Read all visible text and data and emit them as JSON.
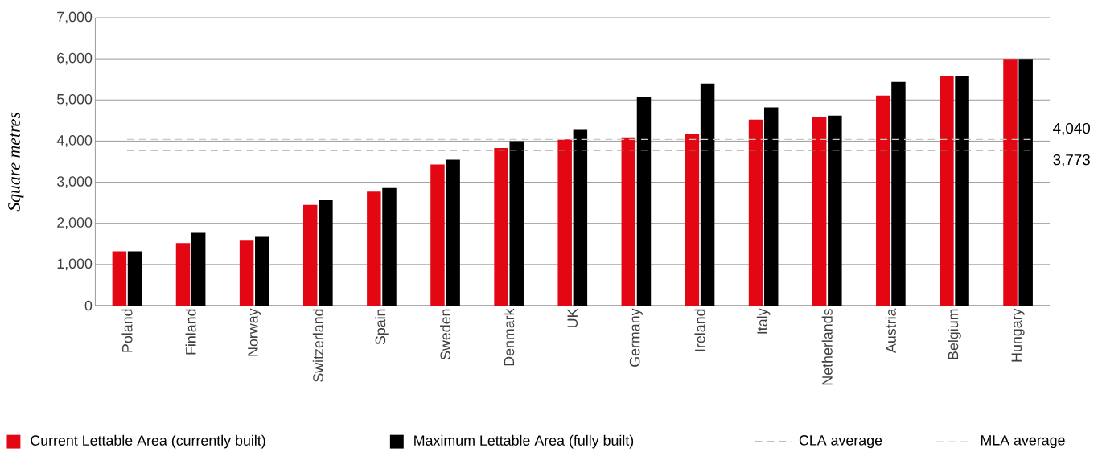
{
  "chart_data": {
    "type": "bar",
    "ylabel": "*Square metres*",
    "categories": [
      "Poland",
      "Finland",
      "Norway",
      "Switzerland",
      "Spain",
      "Sweden",
      "Denmark",
      "UK",
      "Germany",
      "Ireland",
      "Italy",
      "Netherlands",
      "Austria",
      "Belgium",
      "Hungary"
    ],
    "series": [
      {
        "name": "Current Lettable Area (currently built)",
        "color": "#e30613",
        "values": [
          1320,
          1520,
          1580,
          2450,
          2770,
          3430,
          3830,
          4040,
          4090,
          4170,
          4520,
          4590,
          5110,
          5590,
          6000
        ]
      },
      {
        "name": "Maximum Lettable Area (fully built)",
        "color": "#000000",
        "values": [
          1320,
          1770,
          1670,
          2560,
          2860,
          3550,
          4000,
          4270,
          5070,
          5400,
          4820,
          4620,
          5440,
          5590,
          6000
        ]
      }
    ],
    "ylim": [
      0,
      7000
    ],
    "yticks": [
      {
        "value": 0,
        "label": "0"
      },
      {
        "value": 1000,
        "label": "1,000"
      },
      {
        "value": 2000,
        "label": "2,000"
      },
      {
        "value": 3000,
        "label": "3,000"
      },
      {
        "value": 4000,
        "label": "4,000"
      },
      {
        "value": 5000,
        "label": "5,000"
      },
      {
        "value": 6000,
        "label": "6,000"
      },
      {
        "value": 7000,
        "label": "7,000"
      }
    ],
    "grid": "y",
    "legend": "bottom",
    "ref_lines": [
      {
        "axis": "y",
        "value": 3773,
        "label": "3,773",
        "color": "#808080",
        "line_style": "dashed"
      },
      {
        "axis": "y",
        "value": 4040,
        "label": "4,040",
        "color": "#c8c8c8",
        "line_style": "dashed"
      }
    ],
    "annotations": [
      "CLA average",
      "MLA average"
    ]
  }
}
